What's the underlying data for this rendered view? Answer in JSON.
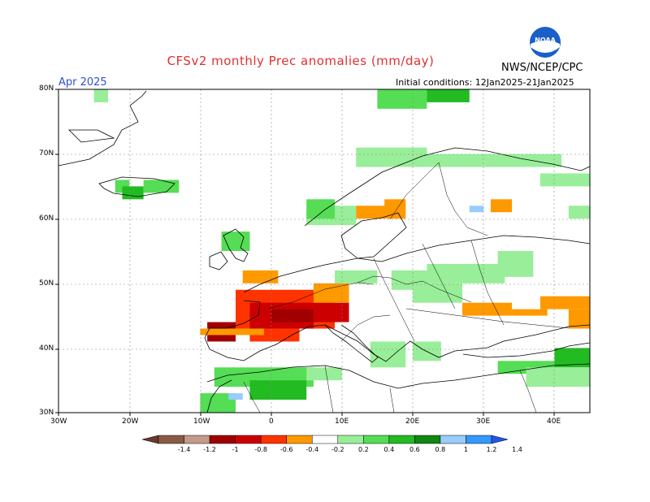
{
  "header": {
    "title": "CFSv2 monthly Prec anomalies (mm/day)",
    "month": "Apr 2025",
    "initial_conditions": "Initial conditions: 12Jan2025-21Jan2025",
    "agency": "NWS/NCEP/CPC",
    "logo_text": "NOAA"
  },
  "axes": {
    "lat_labels": [
      "80N",
      "70N",
      "60N",
      "50N",
      "40N",
      "30N"
    ],
    "lon_labels": [
      "30W",
      "20W",
      "10W",
      "0",
      "10E",
      "20E",
      "30E",
      "40E"
    ]
  },
  "legend": {
    "labels": [
      "-1.4",
      "-1.2",
      "-1",
      "-0.8",
      "-0.6",
      "-0.4",
      "-0.2",
      "0.2",
      "0.4",
      "0.6",
      "0.8",
      "1",
      "1.2",
      "1.4"
    ],
    "colors": [
      "#6b3a2a",
      "#8a5a44",
      "#c49a8a",
      "#a00000",
      "#cc0000",
      "#ff3300",
      "#ff9900",
      "#ffffff",
      "#99ee99",
      "#55dd55",
      "#22bb22",
      "#118811",
      "#99ccff",
      "#3399ff",
      "#2255ee"
    ]
  },
  "chart_data": {
    "type": "heatmap",
    "title": "CFSv2 monthly Prec anomalies (mm/day)",
    "lat_range": [
      30,
      80
    ],
    "lon_range": [
      -30,
      45
    ],
    "cells": [
      {
        "lon": [
          -25,
          -23
        ],
        "lat": [
          78,
          80
        ],
        "color": "#99ee99"
      },
      {
        "lon": [
          -22,
          -20
        ],
        "lat": [
          64,
          66
        ],
        "color": "#55dd55"
      },
      {
        "lon": [
          -21,
          -18
        ],
        "lat": [
          63,
          65
        ],
        "color": "#22bb22"
      },
      {
        "lon": [
          -18,
          -13
        ],
        "lat": [
          64,
          66
        ],
        "color": "#55dd55"
      },
      {
        "lon": [
          -7,
          -3
        ],
        "lat": [
          55,
          58
        ],
        "color": "#55dd55"
      },
      {
        "lon": [
          5,
          12
        ],
        "lat": [
          59,
          62
        ],
        "color": "#99ee99"
      },
      {
        "lon": [
          5,
          9
        ],
        "lat": [
          60,
          63
        ],
        "color": "#55dd55"
      },
      {
        "lon": [
          12,
          19
        ],
        "lat": [
          60,
          62
        ],
        "color": "#ff9900"
      },
      {
        "lon": [
          16,
          19
        ],
        "lat": [
          61,
          63
        ],
        "color": "#ff9900"
      },
      {
        "lon": [
          31,
          34
        ],
        "lat": [
          61,
          63
        ],
        "color": "#ff9900"
      },
      {
        "lon": [
          28,
          30
        ],
        "lat": [
          61,
          62
        ],
        "color": "#99ccff"
      },
      {
        "lon": [
          12,
          22
        ],
        "lat": [
          68,
          71
        ],
        "color": "#99ee99"
      },
      {
        "lon": [
          22,
          30
        ],
        "lat": [
          68,
          70
        ],
        "color": "#99ee99"
      },
      {
        "lon": [
          30,
          41
        ],
        "lat": [
          68,
          70
        ],
        "color": "#99ee99"
      },
      {
        "lon": [
          38,
          45
        ],
        "lat": [
          65,
          67
        ],
        "color": "#99ee99"
      },
      {
        "lon": [
          42,
          45
        ],
        "lat": [
          60,
          62
        ],
        "color": "#99ee99"
      },
      {
        "lon": [
          15,
          22
        ],
        "lat": [
          77,
          80
        ],
        "color": "#55dd55"
      },
      {
        "lon": [
          22,
          28
        ],
        "lat": [
          78,
          80
        ],
        "color": "#22bb22"
      },
      {
        "lon": [
          9,
          15
        ],
        "lat": [
          50,
          52
        ],
        "color": "#99ee99"
      },
      {
        "lon": [
          17,
          22
        ],
        "lat": [
          49,
          52
        ],
        "color": "#99ee99"
      },
      {
        "lon": [
          22,
          33
        ],
        "lat": [
          50,
          53
        ],
        "color": "#99ee99"
      },
      {
        "lon": [
          32,
          37
        ],
        "lat": [
          51,
          55
        ],
        "color": "#99ee99"
      },
      {
        "lon": [
          20,
          27
        ],
        "lat": [
          47,
          50
        ],
        "color": "#99ee99"
      },
      {
        "lon": [
          -5,
          9
        ],
        "lat": [
          43,
          49
        ],
        "color": "#ff3300"
      },
      {
        "lon": [
          -3,
          6
        ],
        "lat": [
          43,
          47
        ],
        "color": "#cc0000"
      },
      {
        "lon": [
          0,
          6
        ],
        "lat": [
          44,
          46
        ],
        "color": "#a00000"
      },
      {
        "lon": [
          6,
          11
        ],
        "lat": [
          44,
          47
        ],
        "color": "#cc0000"
      },
      {
        "lon": [
          6,
          11
        ],
        "lat": [
          47,
          50
        ],
        "color": "#ff9900"
      },
      {
        "lon": [
          -9,
          -5
        ],
        "lat": [
          41,
          44
        ],
        "color": "#a00000"
      },
      {
        "lon": [
          -3,
          4
        ],
        "lat": [
          41,
          43
        ],
        "color": "#ff3300"
      },
      {
        "lon": [
          -10,
          -1
        ],
        "lat": [
          42,
          43
        ],
        "color": "#ff9900"
      },
      {
        "lon": [
          -4,
          1
        ],
        "lat": [
          50,
          52
        ],
        "color": "#ff9900"
      },
      {
        "lon": [
          27,
          34
        ],
        "lat": [
          45,
          47
        ],
        "color": "#ff9900"
      },
      {
        "lon": [
          34,
          39
        ],
        "lat": [
          45,
          46
        ],
        "color": "#ff9900"
      },
      {
        "lon": [
          38,
          45
        ],
        "lat": [
          46,
          48
        ],
        "color": "#ff9900"
      },
      {
        "lon": [
          42,
          45
        ],
        "lat": [
          43,
          46
        ],
        "color": "#ff9900"
      },
      {
        "lon": [
          -8,
          6
        ],
        "lat": [
          34,
          37
        ],
        "color": "#55dd55"
      },
      {
        "lon": [
          -3,
          5
        ],
        "lat": [
          32,
          35
        ],
        "color": "#22bb22"
      },
      {
        "lon": [
          5,
          10
        ],
        "lat": [
          35,
          37
        ],
        "color": "#99ee99"
      },
      {
        "lon": [
          -10,
          -5
        ],
        "lat": [
          30,
          33
        ],
        "color": "#55dd55"
      },
      {
        "lon": [
          -6,
          -4
        ],
        "lat": [
          32,
          33
        ],
        "color": "#99ccff"
      },
      {
        "lon": [
          14,
          19
        ],
        "lat": [
          37,
          41
        ],
        "color": "#99ee99"
      },
      {
        "lon": [
          20,
          24
        ],
        "lat": [
          38,
          41
        ],
        "color": "#99ee99"
      },
      {
        "lon": [
          32,
          40
        ],
        "lat": [
          36,
          38
        ],
        "color": "#55dd55"
      },
      {
        "lon": [
          40,
          45
        ],
        "lat": [
          37,
          40
        ],
        "color": "#22bb22"
      },
      {
        "lon": [
          36,
          45
        ],
        "lat": [
          34,
          37
        ],
        "color": "#99ee99"
      }
    ]
  }
}
